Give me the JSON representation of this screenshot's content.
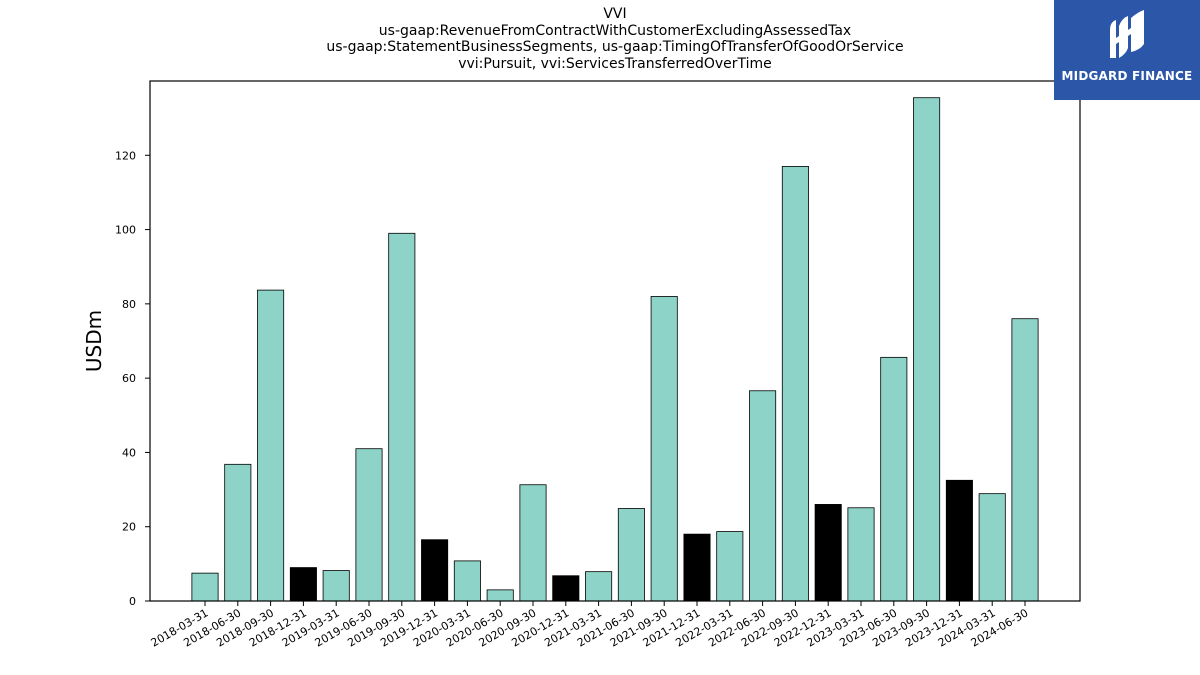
{
  "chart_data": {
    "type": "bar",
    "title_lines": [
      "VVI",
      "us-gaap:RevenueFromContractWithCustomerExcludingAssessedTax",
      "us-gaap:StatementBusinessSegments, us-gaap:TimingOfTransferOfGoodOrService",
      "vvi:Pursuit, vvi:ServicesTransferredOverTime"
    ],
    "xlabel": "",
    "ylabel": "USDm",
    "ylim": [
      0,
      140
    ],
    "yticks": [
      0,
      20,
      40,
      60,
      80,
      100,
      120
    ],
    "grid": false,
    "categories": [
      "2018-03-31",
      "2018-06-30",
      "2018-09-30",
      "2018-12-31",
      "2019-03-31",
      "2019-06-30",
      "2019-09-30",
      "2019-12-31",
      "2020-03-31",
      "2020-06-30",
      "2020-09-30",
      "2020-12-31",
      "2021-03-31",
      "2021-06-30",
      "2021-09-30",
      "2021-12-31",
      "2022-03-31",
      "2022-06-30",
      "2022-09-30",
      "2022-12-31",
      "2023-03-31",
      "2023-06-30",
      "2023-09-30",
      "2023-12-31",
      "2024-03-31",
      "2024-06-30"
    ],
    "values": [
      7.5,
      36.8,
      83.7,
      9.0,
      8.2,
      41.0,
      99.0,
      16.5,
      10.8,
      3.0,
      31.3,
      6.8,
      7.9,
      24.9,
      82.0,
      18.0,
      18.7,
      56.6,
      117.0,
      26.0,
      25.1,
      65.6,
      135.5,
      32.5,
      28.9,
      76.0
    ],
    "highlighted": [
      false,
      false,
      false,
      true,
      false,
      false,
      false,
      true,
      false,
      false,
      false,
      true,
      false,
      false,
      false,
      true,
      false,
      false,
      false,
      true,
      false,
      false,
      false,
      true,
      false,
      false
    ],
    "colors": {
      "bar": "#8dd3c7",
      "highlight": "#000000",
      "edge": "#000000"
    }
  },
  "logo": {
    "text": "MIDGARD FINANCE",
    "background": "#2c56a8"
  }
}
